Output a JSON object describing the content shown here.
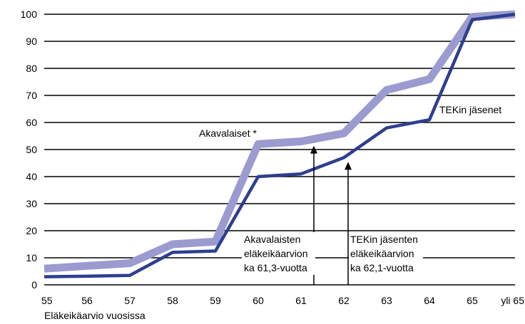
{
  "chart_data": {
    "type": "line",
    "xlabel": "Eläkeikäarvio vuosissa",
    "ylabel": "",
    "ylim": [
      0,
      100
    ],
    "y_ticks": [
      "0",
      "10",
      "20",
      "30",
      "40",
      "50",
      "60",
      "70",
      "80",
      "90",
      "100"
    ],
    "categories": [
      "55",
      "56",
      "57",
      "58",
      "59",
      "60",
      "61",
      "62",
      "63",
      "64",
      "65",
      "yli 65"
    ],
    "grid": "horizontal",
    "series": [
      {
        "name": "Akavalaiset *",
        "color": "#9b9bd0",
        "values": [
          6,
          7,
          8,
          15,
          16,
          52,
          53,
          56,
          72,
          76,
          99,
          100
        ]
      },
      {
        "name": "TEKin jäsenet",
        "color": "#2e3e8f",
        "values": [
          3,
          3.2,
          3.5,
          12,
          12.5,
          40,
          41,
          47,
          58,
          61,
          98,
          100
        ]
      }
    ],
    "annotations": [
      {
        "lines": [
          "Akavalaisten",
          "eläkeikäarvion",
          "ka 61,3-vuotta"
        ],
        "x": 61.3,
        "y": 53
      },
      {
        "lines": [
          "TEKin jäsenten",
          "eläkeikäarvion",
          "ka 62,1-vuotta"
        ],
        "x": 62.1,
        "y": 47
      }
    ]
  }
}
